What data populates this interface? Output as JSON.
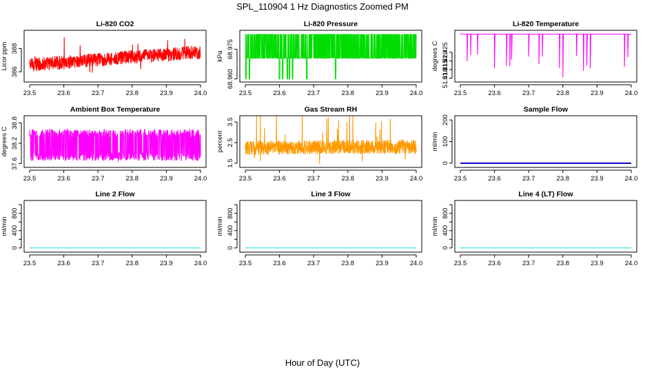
{
  "page": {
    "title": "SPL_110904  1 Hz Diagnostics Zoomed PM",
    "xlabel": "Hour of Day (UTC)"
  },
  "chart_data": [
    {
      "type": "line",
      "title": "Li-820 CO2",
      "ylabel": "Licor ppm",
      "color": "#ff0000",
      "xlim": [
        23.5,
        24.0
      ],
      "x_ticks": [
        "23.5",
        "23.6",
        "23.7",
        "23.8",
        "23.9",
        "24.0"
      ],
      "ylim": [
        385.3,
        389.4
      ],
      "y_ticks": [
        386,
        388
      ],
      "y_tick_labels": [
        "386",
        "388"
      ],
      "series": {
        "style": "noise",
        "trend": [
          386.6,
          387.7
        ],
        "amplitude": 0.6,
        "spikes": 1.2
      }
    },
    {
      "type": "line",
      "title": "Li-820 Pressure",
      "ylabel": "kPa",
      "color": "#00dd00",
      "xlim": [
        23.5,
        24.0
      ],
      "x_ticks": [
        "23.5",
        "23.6",
        "23.7",
        "23.8",
        "23.9",
        "24.0"
      ],
      "ylim": [
        68.9595,
        68.9835
      ],
      "y_ticks": [
        68.96,
        68.975
      ],
      "y_tick_labels": [
        "68.960",
        "68.975"
      ],
      "series": {
        "style": "quantized",
        "levels": [
          68.9705,
          68.9825
        ],
        "dropouts": [
          23.502,
          23.512,
          23.6,
          23.609,
          23.623,
          23.629,
          23.638,
          23.68,
          23.764
        ]
      }
    },
    {
      "type": "line",
      "title": "Li-820 Temperature",
      "ylabel": "degrees C",
      "color": "#ff00ff",
      "xlim": [
        23.5,
        24.0
      ],
      "x_ticks": [
        "23.5",
        "23.6",
        "23.7",
        "23.8",
        "23.9",
        "24.0"
      ],
      "ylim": [
        51.409,
        51.4365
      ],
      "y_ticks": [
        51.41,
        51.415,
        51.42,
        51.425
      ],
      "y_tick_labels": [
        "51.410",
        "51.415",
        "51.420",
        "51.425"
      ],
      "series": {
        "style": "flat_dips",
        "base": 51.4355,
        "dips": [
          23.52,
          23.53,
          23.55,
          23.6,
          23.635,
          23.645,
          23.65,
          23.7,
          23.73,
          23.74,
          23.79,
          23.8,
          23.84,
          23.86,
          23.87,
          23.88,
          23.98,
          23.99
        ]
      }
    },
    {
      "type": "line",
      "title": "Ambient Box Temperature",
      "ylabel": "degrees C",
      "color": "#ff00ff",
      "xlim": [
        23.5,
        24.0
      ],
      "x_ticks": [
        "23.5",
        "23.6",
        "23.7",
        "23.8",
        "23.9",
        "24.0"
      ],
      "ylim": [
        37.55,
        38.95
      ],
      "y_ticks": [
        37.6,
        38.2,
        38.8
      ],
      "y_tick_labels": [
        "37.6",
        "38.2",
        "38.8"
      ],
      "series": {
        "style": "quantized",
        "levels": [
          37.8,
          38.5
        ],
        "noise": 0.12
      }
    },
    {
      "type": "line",
      "title": "Gas Stream RH",
      "ylabel": "percent",
      "color": "#ff9900",
      "xlim": [
        23.5,
        24.0
      ],
      "x_ticks": [
        "23.5",
        "23.6",
        "23.7",
        "23.8",
        "23.9",
        "24.0"
      ],
      "ylim": [
        1.4,
        3.7
      ],
      "y_ticks": [
        1.5,
        2.5,
        3.5
      ],
      "y_tick_labels": [
        "1.5",
        "2.5",
        "3.5"
      ],
      "series": {
        "style": "noise",
        "trend": [
          2.25,
          2.3
        ],
        "amplitude": 0.35,
        "spikes": 1.3
      }
    },
    {
      "type": "line",
      "title": "Sample Flow",
      "ylabel": "ml/min",
      "color": "#0000cc",
      "xlim": [
        23.5,
        24.0
      ],
      "x_ticks": [
        "23.5",
        "23.6",
        "23.7",
        "23.8",
        "23.9",
        "24.0"
      ],
      "ylim": [
        -10,
        210
      ],
      "y_ticks": [
        0,
        100,
        200
      ],
      "y_tick_labels": [
        "0",
        "100",
        "200"
      ],
      "series": {
        "style": "constant",
        "value": 0
      }
    },
    {
      "type": "line",
      "title": "Line 2 Flow",
      "ylabel": "ml/min",
      "color": "#00dddd",
      "xlim": [
        23.5,
        24.0
      ],
      "x_ticks": [
        "23.5",
        "23.6",
        "23.7",
        "23.8",
        "23.9",
        "24.0"
      ],
      "ylim": [
        -50,
        1050
      ],
      "y_ticks": [
        0,
        200,
        400,
        600,
        800,
        1000
      ],
      "y_tick_labels": [
        "0",
        "400",
        "800"
      ],
      "series": {
        "style": "constant",
        "value": 0
      }
    },
    {
      "type": "line",
      "title": "Line 3 Flow",
      "ylabel": "ml/min",
      "color": "#00dddd",
      "xlim": [
        23.5,
        24.0
      ],
      "x_ticks": [
        "23.5",
        "23.6",
        "23.7",
        "23.8",
        "23.9",
        "24.0"
      ],
      "ylim": [
        -50,
        1050
      ],
      "y_ticks": [
        0,
        200,
        400,
        600,
        800,
        1000
      ],
      "y_tick_labels": [
        "0",
        "400",
        "800"
      ],
      "series": {
        "style": "constant",
        "value": 0
      }
    },
    {
      "type": "line",
      "title": "Line 4 (LT) Flow",
      "ylabel": "ml/min",
      "color": "#00dddd",
      "xlim": [
        23.5,
        24.0
      ],
      "x_ticks": [
        "23.5",
        "23.6",
        "23.7",
        "23.8",
        "23.9",
        "24.0"
      ],
      "ylim": [
        -50,
        1050
      ],
      "y_ticks": [
        0,
        200,
        400,
        600,
        800,
        1000
      ],
      "y_tick_labels": [
        "0",
        "400",
        "800"
      ],
      "series": {
        "style": "constant",
        "value": 0
      }
    }
  ]
}
